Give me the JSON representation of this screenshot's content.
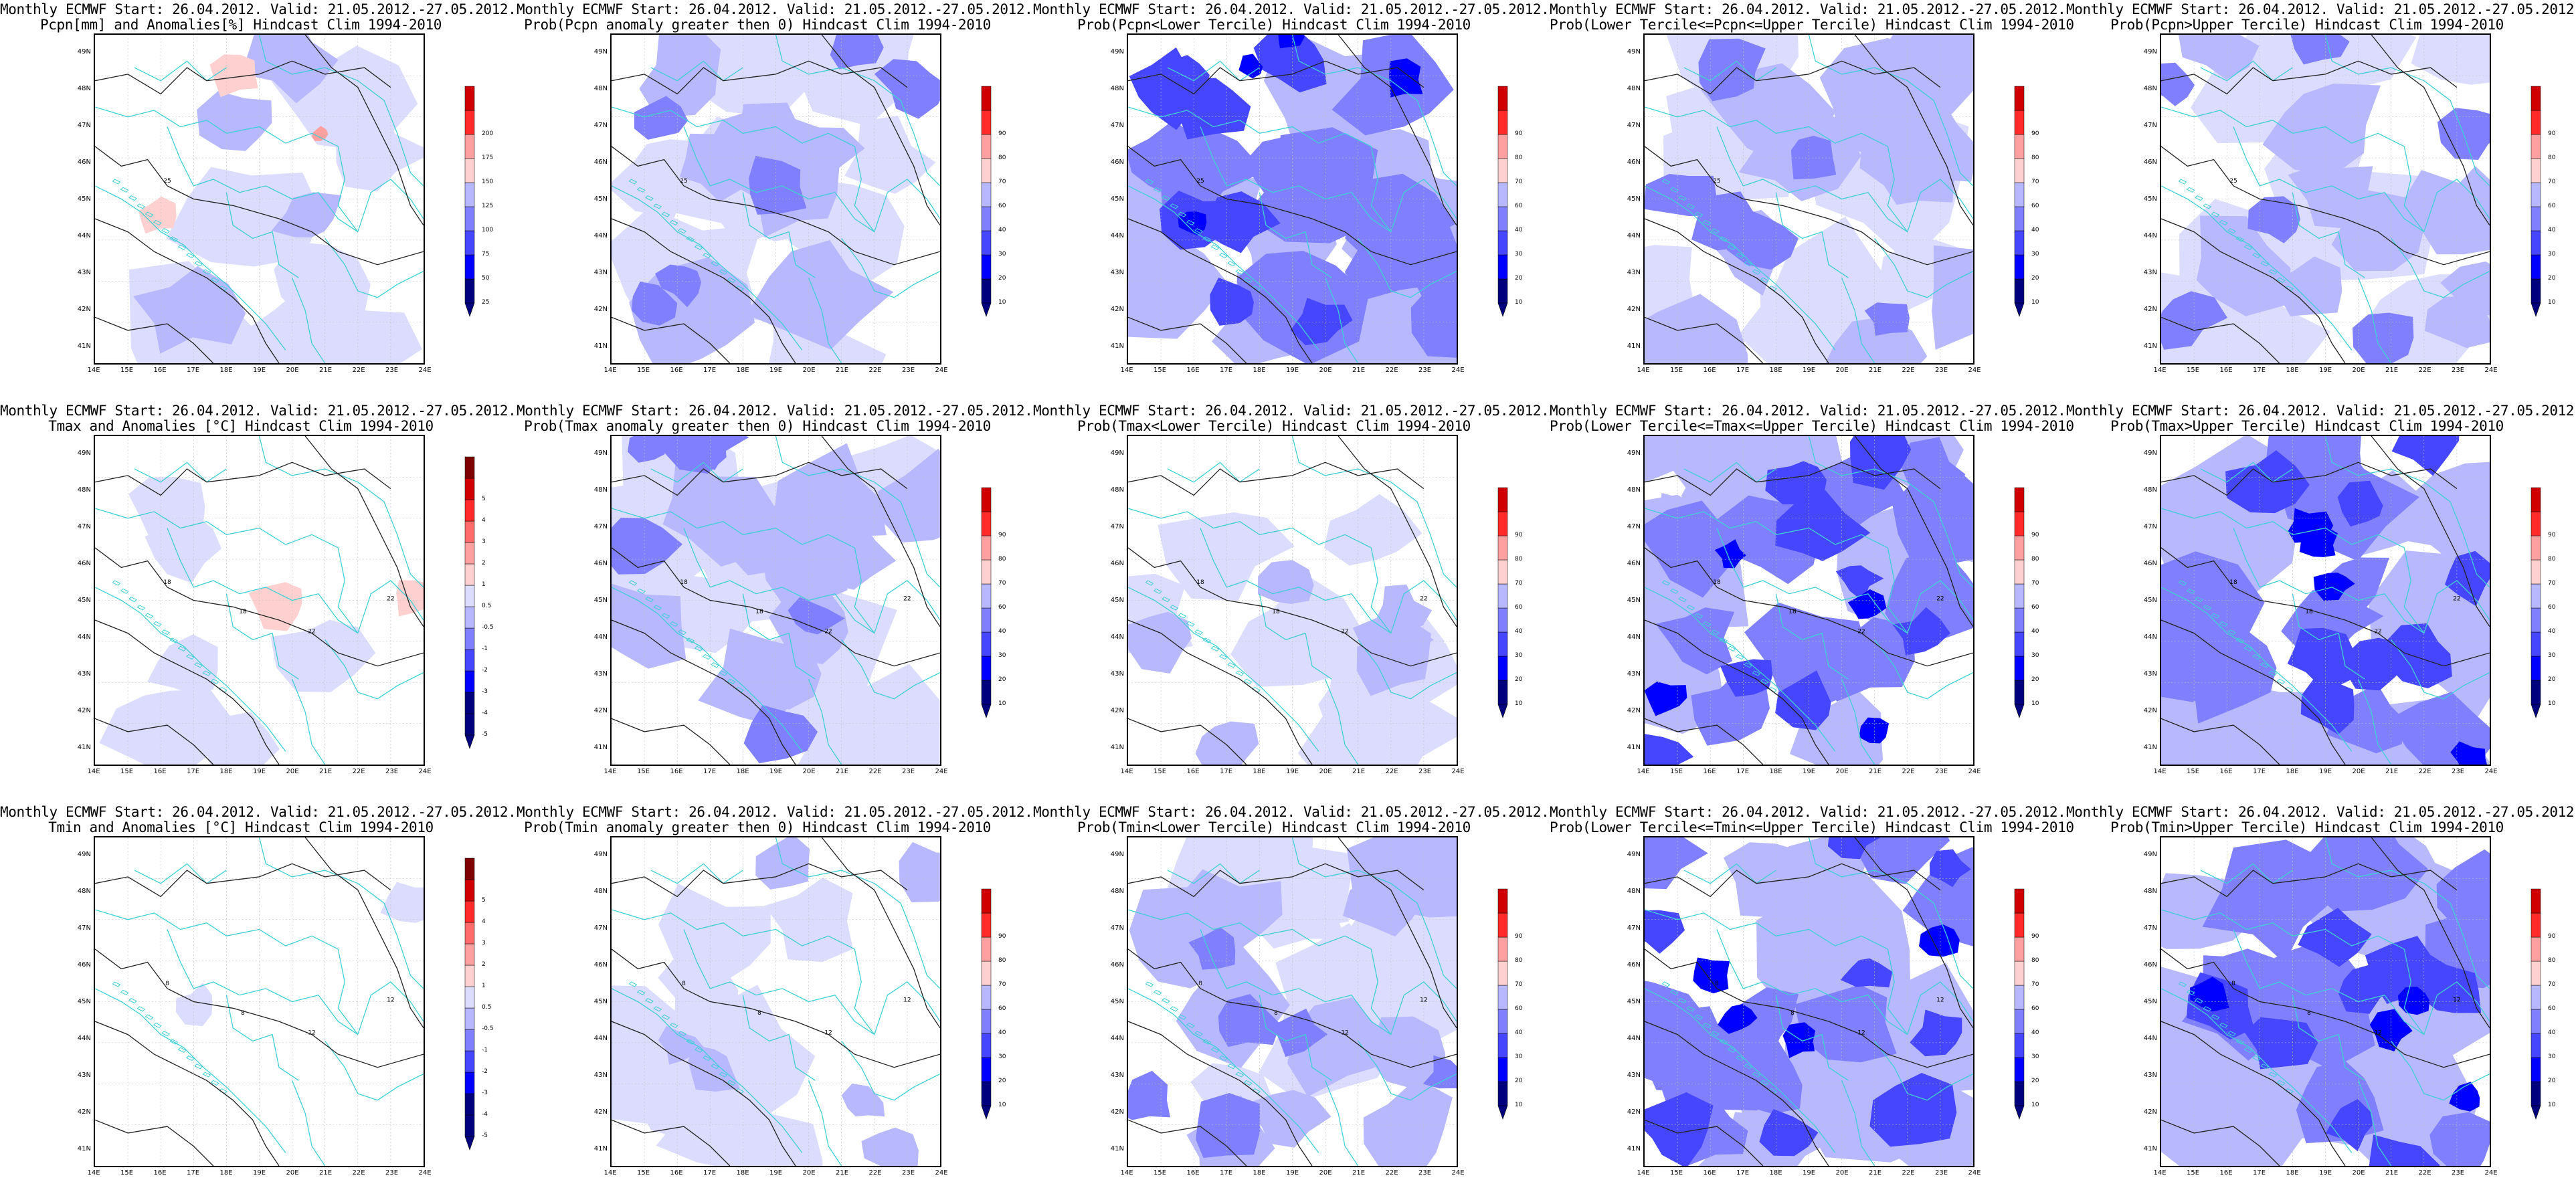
{
  "figure": {
    "lat_labels": [
      "49N",
      "48N",
      "47N",
      "46N",
      "45N",
      "44N",
      "43N",
      "42N",
      "41N"
    ],
    "lon_labels": [
      "14E",
      "15E",
      "16E",
      "17E",
      "18E",
      "19E",
      "20E",
      "21E",
      "22E",
      "23E",
      "24E"
    ],
    "colors": {
      "coast": "#3fd0d6",
      "contour": "#222222",
      "grid": "#bfbfbf",
      "blue_scale": [
        "#00007f",
        "#0000ff",
        "#4646ff",
        "#8080ff",
        "#b8b8ff",
        "#dcdcff"
      ],
      "red_scale": [
        "#ffd0d0",
        "#ffa0a0",
        "#ff6a6a",
        "#ff2a2a",
        "#d00000",
        "#7f0000"
      ]
    },
    "rows": [
      {
        "variable": "precipitation",
        "panels": [
          {
            "title1": "Monthly ECMWF Start: 26.04.2012. Valid: 21.05.2012.-27.05.2012.",
            "title2": "Pcpn[mm] and Anomalies[%] Hindcast Clim 1994-2010",
            "colorbar": [
              "25",
              "50",
              "75",
              "100",
              "125",
              "150",
              "175",
              "200"
            ],
            "contour_labels": [
              "25"
            ]
          },
          {
            "title1": "Monthly ECMWF Start: 26.04.2012. Valid: 21.05.2012.-27.05.2012.",
            "title2": "Prob(Pcpn anomaly greater then 0) Hindcast Clim 1994-2010",
            "colorbar": [
              "10",
              "20",
              "30",
              "40",
              "60",
              "70",
              "80",
              "90"
            ],
            "contour_labels": [
              "25"
            ]
          },
          {
            "title1": "Monthly ECMWF Start: 26.04.2012. Valid: 21.05.2012.-27.05.2012.",
            "title2": "Prob(Pcpn<Lower Tercile) Hindcast Clim 1994-2010",
            "colorbar": [
              "10",
              "20",
              "30",
              "40",
              "60",
              "70",
              "80",
              "90"
            ],
            "contour_labels": [
              "25"
            ]
          },
          {
            "title1": "Monthly ECMWF Start: 26.04.2012. Valid: 21.05.2012.-27.05.2012.",
            "title2": "Prob(Lower Tercile<=Pcpn<=Upper Tercile) Hindcast Clim 1994-2010",
            "colorbar": [
              "10",
              "20",
              "30",
              "40",
              "60",
              "70",
              "80",
              "90"
            ],
            "contour_labels": [
              "25"
            ]
          },
          {
            "title1": "Monthly ECMWF Start: 26.04.2012. Valid: 21.05.2012.-27.05.2012.",
            "title2": "Prob(Pcpn>Upper Tercile) Hindcast Clim 1994-2010",
            "colorbar": [
              "10",
              "20",
              "30",
              "40",
              "60",
              "70",
              "80",
              "90"
            ],
            "contour_labels": [
              "25"
            ]
          }
        ]
      },
      {
        "variable": "tmax",
        "panels": [
          {
            "title1": "Monthly ECMWF Start: 26.04.2012. Valid: 21.05.2012.-27.05.2012.",
            "title2": "Tmax and Anomalies [°C] Hindcast Clim 1994-2010",
            "colorbar": [
              "-5",
              "-4",
              "-3",
              "-2",
              "-1",
              "-0.5",
              "0.5",
              "1",
              "2",
              "3",
              "4",
              "5"
            ],
            "contour_labels": [
              "18",
              "22",
              "18",
              "22"
            ]
          },
          {
            "title1": "Monthly ECMWF Start: 26.04.2012. Valid: 21.05.2012.-27.05.2012.",
            "title2": "Prob(Tmax anomaly greater then 0) Hindcast Clim 1994-2010",
            "colorbar": [
              "10",
              "20",
              "30",
              "40",
              "60",
              "70",
              "80",
              "90"
            ],
            "contour_labels": [
              "18",
              "22",
              "18",
              "22"
            ]
          },
          {
            "title1": "Monthly ECMWF Start: 26.04.2012. Valid: 21.05.2012.-27.05.2012.",
            "title2": "Prob(Tmax<Lower Tercile) Hindcast Clim 1994-2010",
            "colorbar": [
              "10",
              "20",
              "30",
              "40",
              "60",
              "70",
              "80",
              "90"
            ],
            "contour_labels": [
              "18",
              "22",
              "18",
              "22"
            ]
          },
          {
            "title1": "Monthly ECMWF Start: 26.04.2012. Valid: 21.05.2012.-27.05.2012.",
            "title2": "Prob(Lower Tercile<=Tmax<=Upper Tercile) Hindcast Clim 1994-2010",
            "colorbar": [
              "10",
              "20",
              "30",
              "40",
              "60",
              "70",
              "80",
              "90"
            ],
            "contour_labels": [
              "18",
              "22",
              "18",
              "22"
            ]
          },
          {
            "title1": "Monthly ECMWF Start: 26.04.2012. Valid: 21.05.2012.-27.05.2012.",
            "title2": "Prob(Tmax>Upper Tercile) Hindcast Clim 1994-2010",
            "colorbar": [
              "10",
              "20",
              "30",
              "40",
              "60",
              "70",
              "80",
              "90"
            ],
            "contour_labels": [
              "18",
              "22",
              "18",
              "22"
            ]
          }
        ]
      },
      {
        "variable": "tmin",
        "panels": [
          {
            "title1": "Monthly ECMWF Start: 26.04.2012. Valid: 21.05.2012.-27.05.2012.",
            "title2": "Tmin and Anomalies [°C] Hindcast Clim 1994-2010",
            "colorbar": [
              "-5",
              "-4",
              "-3",
              "-2",
              "-1",
              "-0.5",
              "0.5",
              "1",
              "2",
              "3",
              "4",
              "5"
            ],
            "contour_labels": [
              "8",
              "12",
              "8",
              "12"
            ]
          },
          {
            "title1": "Monthly ECMWF Start: 26.04.2012. Valid: 21.05.2012.-27.05.2012.",
            "title2": "Prob(Tmin anomaly greater then 0) Hindcast Clim 1994-2010",
            "colorbar": [
              "10",
              "20",
              "30",
              "40",
              "60",
              "70",
              "80",
              "90"
            ],
            "contour_labels": [
              "8",
              "12",
              "8",
              "12"
            ]
          },
          {
            "title1": "Monthly ECMWF Start: 26.04.2012. Valid: 21.05.2012.-27.05.2012.",
            "title2": "Prob(Tmin<Lower Tercile) Hindcast Clim 1994-2010",
            "colorbar": [
              "10",
              "20",
              "30",
              "40",
              "60",
              "70",
              "80",
              "90"
            ],
            "contour_labels": [
              "8",
              "12",
              "8",
              "12"
            ]
          },
          {
            "title1": "Monthly ECMWF Start: 26.04.2012. Valid: 21.05.2012.-27.05.2012.",
            "title2": "Prob(Lower Tercile<=Tmin<=Upper Tercile) Hindcast Clim 1994-2010",
            "colorbar": [
              "10",
              "20",
              "30",
              "40",
              "60",
              "70",
              "80",
              "90"
            ],
            "contour_labels": [
              "8",
              "12",
              "8",
              "12"
            ]
          },
          {
            "title1": "Monthly ECMWF Start: 26.04.2012. Valid: 21.05.2012.-27.05.2012.",
            "title2": "Prob(Tmin>Upper Tercile) Hindcast Clim 1994-2010",
            "colorbar": [
              "10",
              "20",
              "30",
              "40",
              "60",
              "70",
              "80",
              "90"
            ],
            "contour_labels": [
              "8",
              "12",
              "8",
              "12"
            ]
          }
        ]
      }
    ]
  }
}
